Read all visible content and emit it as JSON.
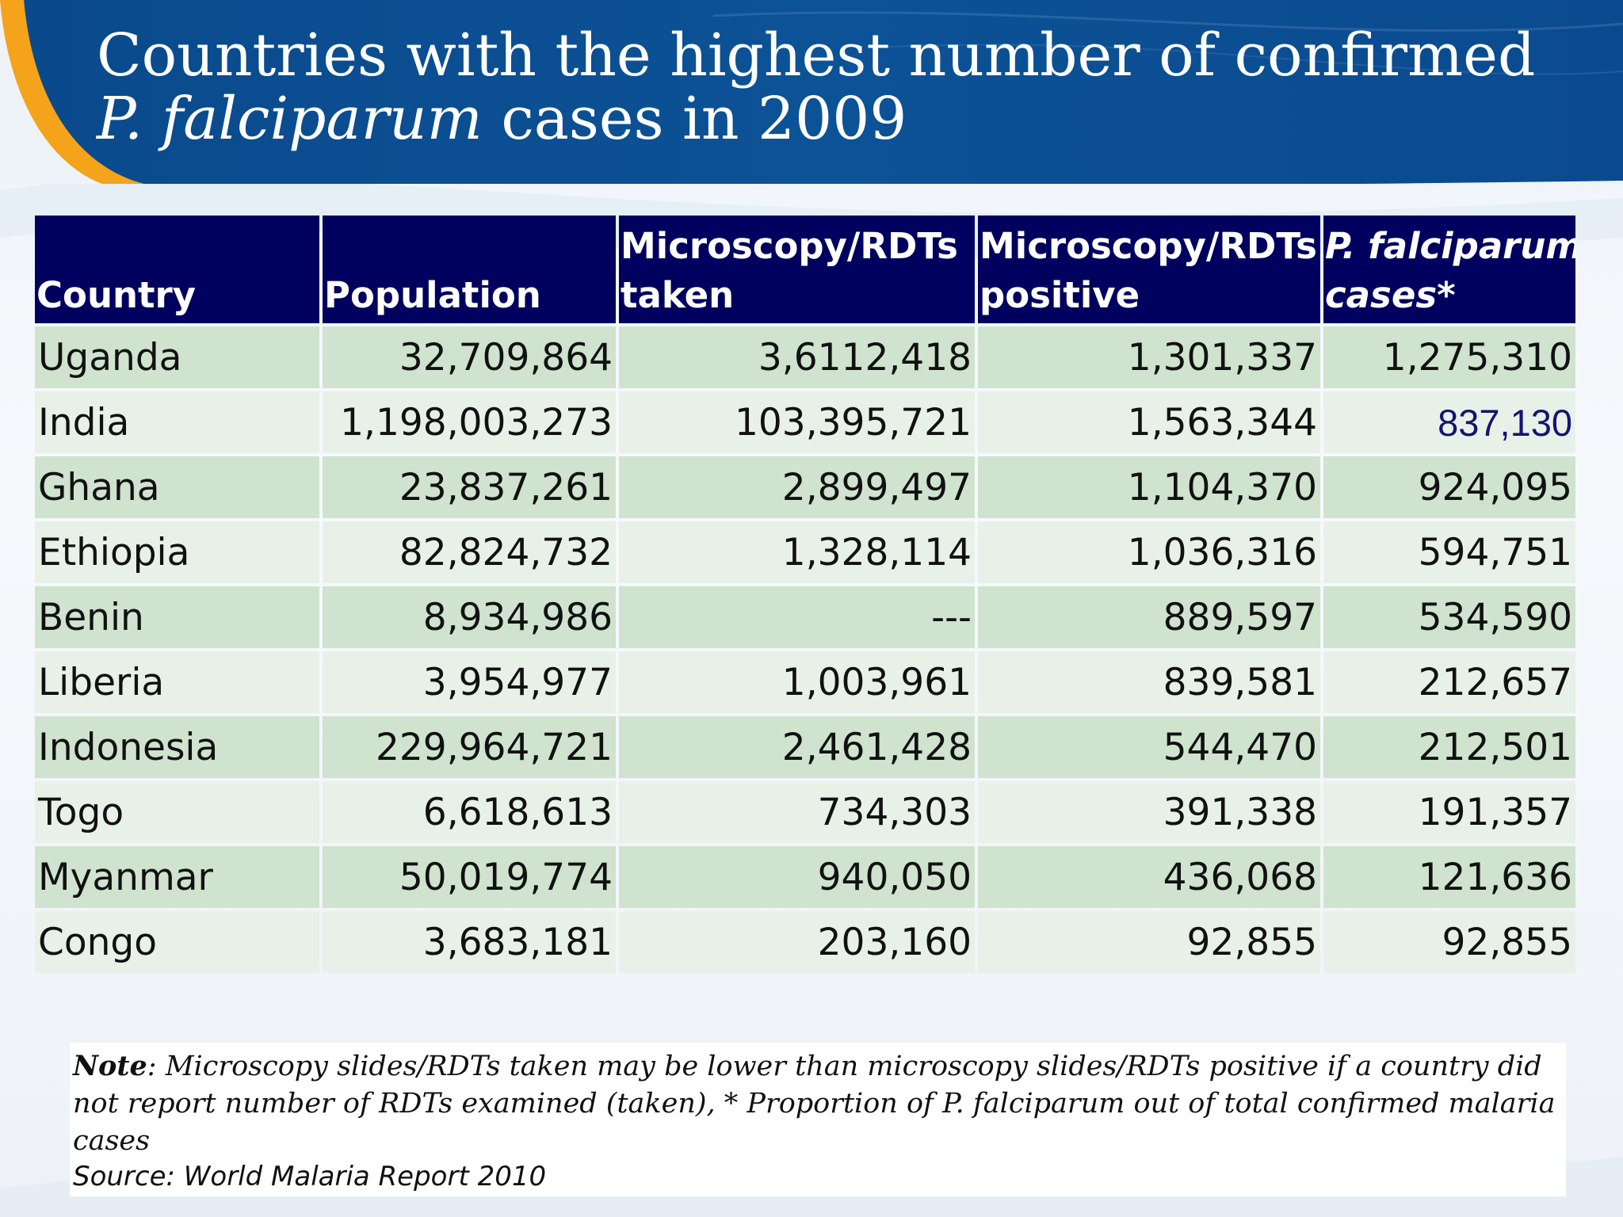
{
  "slide": {
    "title_part1": "Countries with the highest number of confirmed ",
    "title_italic1": "P. falciparum",
    "title_part2": " cases in 2009",
    "colors": {
      "banner_blue": "#0b4f92",
      "accent_orange": "#f5a31b",
      "header_navy": "#00005f",
      "row_dark": "#cfe3cf",
      "row_light": "#e8f1e8"
    }
  },
  "table": {
    "headers": [
      {
        "line1": "",
        "line2": "Country"
      },
      {
        "line1": "",
        "line2": "Population"
      },
      {
        "line1": "Microscopy/RDTs",
        "line2": "taken"
      },
      {
        "line1": "Microscopy/RDTs",
        "line2": "positive"
      },
      {
        "line1": "P. falciparum",
        "line2": "cases*"
      }
    ],
    "rows": [
      {
        "country": "Uganda",
        "population": "32,709,864",
        "taken": "3,6112,418",
        "positive": "1,301,337",
        "pf_cases": "1,275,310"
      },
      {
        "country": "India",
        "population": "1,198,003,273",
        "taken": "103,395,721",
        "positive": "1,563,344",
        "pf_cases": "837,130"
      },
      {
        "country": "Ghana",
        "population": "23,837,261",
        "taken": "2,899,497",
        "positive": "1,104,370",
        "pf_cases": "924,095"
      },
      {
        "country": "Ethiopia",
        "population": "82,824,732",
        "taken": "1,328,114",
        "positive": "1,036,316",
        "pf_cases": "594,751"
      },
      {
        "country": "Benin",
        "population": "8,934,986",
        "taken": "---",
        "positive": "889,597",
        "pf_cases": "534,590"
      },
      {
        "country": "Liberia",
        "population": "3,954,977",
        "taken": "1,003,961",
        "positive": "839,581",
        "pf_cases": "212,657"
      },
      {
        "country": "Indonesia",
        "population": "229,964,721",
        "taken": "2,461,428",
        "positive": "544,470",
        "pf_cases": "212,501"
      },
      {
        "country": "Togo",
        "population": "6,618,613",
        "taken": "734,303",
        "positive": "391,338",
        "pf_cases": "191,357"
      },
      {
        "country": "Myanmar",
        "population": "50,019,774",
        "taken": "940,050",
        "positive": "436,068",
        "pf_cases": "121,636"
      },
      {
        "country": "Congo",
        "population": "3,683,181",
        "taken": "203,160",
        "positive": "92,855",
        "pf_cases": "92,855"
      }
    ]
  },
  "note": {
    "label": "Note",
    "text": ": Microscopy slides/RDTs taken may be lower than microscopy slides/RDTs positive if a country did not report number of RDTs examined (taken), * Proportion of P. falciparum out of total confirmed malaria cases",
    "source": "Source: World Malaria Report 2010"
  }
}
